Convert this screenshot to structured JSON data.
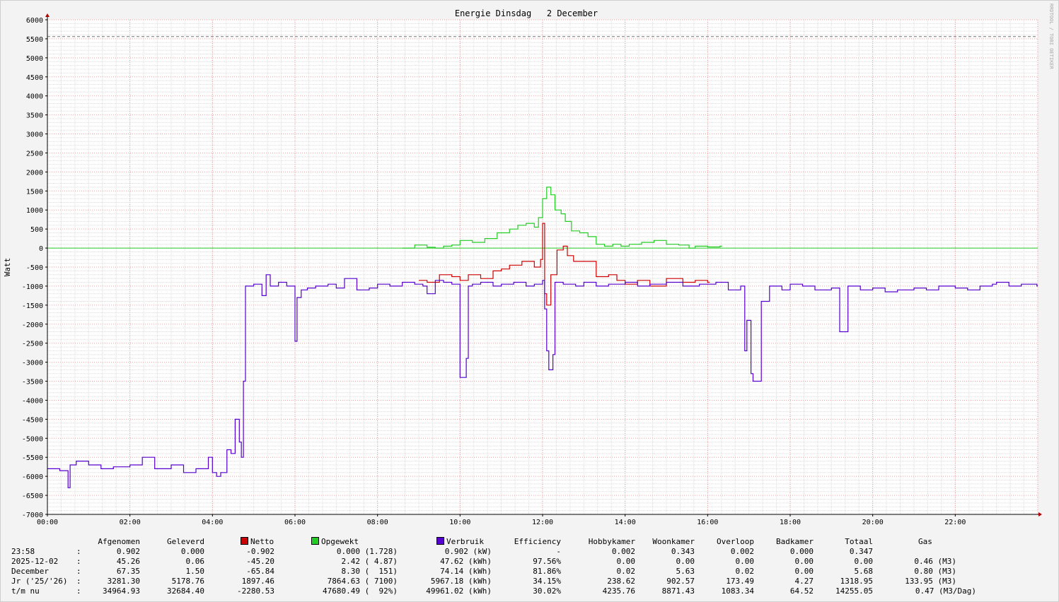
{
  "chart_data": {
    "type": "line",
    "title": "Energie Dinsdag   2 December",
    "ylabel": "Watt",
    "watermark": "RRDTOOL / TOBI OETIKER",
    "ylim": [
      -7000,
      6000
    ],
    "y_ticks": [
      "6000",
      "5500",
      "5000",
      "4500",
      "4000",
      "3500",
      "3000",
      "2500",
      "2000",
      "1500",
      "1000",
      "500",
      "0",
      "-500",
      "-1000",
      "-1500",
      "-2000",
      "-2500",
      "-3000",
      "-3500",
      "-4000",
      "-4500",
      "-5000",
      "-5500",
      "-6000",
      "-6500",
      "-7000"
    ],
    "xlim": [
      0,
      24
    ],
    "x_ticks": [
      "00:00",
      "02:00",
      "04:00",
      "06:00",
      "08:00",
      "10:00",
      "12:00",
      "14:00",
      "16:00",
      "18:00",
      "20:00",
      "22:00"
    ],
    "hline_dashed": 5560,
    "colors": {
      "netto": "#cc0000",
      "opgewekt": "#22cc22",
      "verbruik": "#5500cc",
      "grid_minor": "#d8d8d8",
      "grid_major": "#f0a0a0"
    },
    "series": [
      {
        "name": "Netto",
        "color": "#cc0000",
        "x": [
          9.0,
          9.2,
          9.5,
          9.8,
          10.0,
          10.2,
          10.5,
          10.8,
          11.0,
          11.2,
          11.5,
          11.8,
          11.95,
          12.0,
          12.05,
          12.1,
          12.2,
          12.35,
          12.5,
          12.6,
          12.75,
          13.0,
          13.3,
          13.6,
          13.8,
          14.0,
          14.3,
          14.6,
          15.0,
          15.4,
          15.7,
          16.0
        ],
        "values": [
          -850,
          -900,
          -700,
          -750,
          -850,
          -700,
          -800,
          -600,
          -550,
          -450,
          -350,
          -500,
          -300,
          650,
          -1200,
          -1500,
          -700,
          -50,
          50,
          -200,
          -350,
          -350,
          -750,
          -700,
          -850,
          -950,
          -850,
          -1000,
          -800,
          -900,
          -850,
          -900
        ]
      },
      {
        "name": "Opgewekt",
        "color": "#22cc22",
        "x": [
          8.6,
          8.9,
          9.2,
          9.4,
          9.6,
          9.8,
          10.0,
          10.3,
          10.6,
          10.9,
          11.2,
          11.4,
          11.6,
          11.8,
          11.9,
          12.0,
          12.1,
          12.2,
          12.3,
          12.45,
          12.55,
          12.7,
          12.9,
          13.1,
          13.3,
          13.5,
          13.7,
          13.9,
          14.1,
          14.4,
          14.7,
          15.0,
          15.3,
          15.55,
          15.7,
          16.0,
          16.3
        ],
        "values": [
          0,
          80,
          20,
          0,
          50,
          80,
          200,
          150,
          250,
          400,
          500,
          600,
          650,
          550,
          800,
          1300,
          1600,
          1400,
          1000,
          900,
          700,
          450,
          400,
          300,
          100,
          50,
          100,
          50,
          100,
          150,
          200,
          100,
          80,
          0,
          50,
          30,
          50
        ]
      },
      {
        "name": "Verbruik",
        "color": "#5500cc",
        "x": [
          0.0,
          0.3,
          0.5,
          0.55,
          0.7,
          1.0,
          1.3,
          1.6,
          2.0,
          2.3,
          2.6,
          3.0,
          3.3,
          3.6,
          3.9,
          4.0,
          4.1,
          4.2,
          4.35,
          4.45,
          4.55,
          4.65,
          4.7,
          4.75,
          4.8,
          5.0,
          5.2,
          5.3,
          5.4,
          5.6,
          5.8,
          6.0,
          6.05,
          6.15,
          6.3,
          6.5,
          6.8,
          7.0,
          7.2,
          7.5,
          7.8,
          8.0,
          8.3,
          8.6,
          8.9,
          9.1,
          9.2,
          9.4,
          9.6,
          9.8,
          10.0,
          10.15,
          10.2,
          10.3,
          10.5,
          10.8,
          11.0,
          11.3,
          11.6,
          11.8,
          12.0,
          12.05,
          12.1,
          12.15,
          12.25,
          12.3,
          12.5,
          12.8,
          13.0,
          13.3,
          13.6,
          14.0,
          14.3,
          14.6,
          15.0,
          15.4,
          15.8,
          16.2,
          16.5,
          16.8,
          16.9,
          16.95,
          17.05,
          17.1,
          17.3,
          17.5,
          17.8,
          18.0,
          18.3,
          18.6,
          19.0,
          19.2,
          19.4,
          19.7,
          20.0,
          20.3,
          20.6,
          21.0,
          21.3,
          21.6,
          22.0,
          22.3,
          22.6,
          22.9,
          23.0,
          23.3,
          23.6,
          23.98
        ],
        "values": [
          -5800,
          -5850,
          -6300,
          -5700,
          -5600,
          -5700,
          -5800,
          -5750,
          -5700,
          -5500,
          -5800,
          -5700,
          -5900,
          -5800,
          -5500,
          -5900,
          -6000,
          -5900,
          -5300,
          -5400,
          -4500,
          -5100,
          -5500,
          -3500,
          -1000,
          -950,
          -1250,
          -700,
          -1000,
          -900,
          -1000,
          -2450,
          -1300,
          -1100,
          -1050,
          -1000,
          -950,
          -1050,
          -800,
          -1100,
          -1050,
          -950,
          -1000,
          -900,
          -950,
          -1000,
          -1200,
          -850,
          -900,
          -950,
          -3400,
          -2900,
          -1000,
          -950,
          -900,
          -1000,
          -950,
          -900,
          -1000,
          -950,
          -850,
          -1600,
          -2700,
          -3200,
          -2800,
          -900,
          -950,
          -1000,
          -900,
          -1000,
          -950,
          -900,
          -1000,
          -950,
          -900,
          -1000,
          -950,
          -900,
          -1100,
          -1000,
          -2700,
          -1900,
          -3300,
          -3500,
          -1400,
          -1000,
          -1100,
          -950,
          -1000,
          -1100,
          -1050,
          -2200,
          -1000,
          -1100,
          -1050,
          -1150,
          -1100,
          -1050,
          -1100,
          -1000,
          -1050,
          -1100,
          -1000,
          -950,
          -900,
          -1000,
          -950,
          -1000
        ]
      }
    ]
  },
  "stats": {
    "headers": {
      "afgenomen": "Afgenomen",
      "geleverd": "Geleverd",
      "netto": "Netto",
      "opgewekt": "Opgewekt",
      "verbruik": "Verbruik",
      "efficiency": "Efficiency",
      "hobbykamer": "Hobbykamer",
      "woonkamer": "Woonkamer",
      "overloop": "Overloop",
      "badkamer": "Badkamer",
      "totaal": "Totaal",
      "gas": "Gas"
    },
    "rows": [
      {
        "label": "23:58",
        "sep": ":",
        "afgenomen": "0.902",
        "geleverd": "0.000",
        "netto": "-0.902",
        "opgewekt": "0.000 (1.728)",
        "verbruik": "0.902 (kW)",
        "efficiency": "-",
        "hobbykamer": "0.002",
        "woonkamer": "0.343",
        "overloop": "0.002",
        "badkamer": "0.000",
        "totaal": "0.347",
        "gas": ""
      },
      {
        "label": "2025-12-02",
        "sep": ":",
        "afgenomen": "45.26",
        "geleverd": "0.06",
        "netto": "-45.20",
        "opgewekt": "2.42 ( 4.87)",
        "verbruik": "47.62 (kWh)",
        "efficiency": "97.56%",
        "hobbykamer": "0.00",
        "woonkamer": "0.00",
        "overloop": "0.00",
        "badkamer": "0.00",
        "totaal": "0.00",
        "gas": "0.46 (M3)"
      },
      {
        "label": "December",
        "sep": ":",
        "afgenomen": "67.35",
        "geleverd": "1.50",
        "netto": "-65.84",
        "opgewekt": "8.30 (  151)",
        "verbruik": "74.14 (kWh)",
        "efficiency": "81.86%",
        "hobbykamer": "0.02",
        "woonkamer": "5.63",
        "overloop": "0.02",
        "badkamer": "0.00",
        "totaal": "5.68",
        "gas": "0.80 (M3)"
      },
      {
        "label": "Jr ('25/'26)",
        "sep": ":",
        "afgenomen": "3281.30",
        "geleverd": "5178.76",
        "netto": "1897.46",
        "opgewekt": "7864.63 ( 7100)",
        "verbruik": "5967.18 (kWh)",
        "efficiency": "34.15%",
        "hobbykamer": "238.62",
        "woonkamer": "902.57",
        "overloop": "173.49",
        "badkamer": "4.27",
        "totaal": "1318.95",
        "gas": "133.95 (M3)"
      },
      {
        "label": "t/m nu",
        "sep": ":",
        "afgenomen": "34964.93",
        "geleverd": "32684.40",
        "netto": "-2280.53",
        "opgewekt": "47680.49 (  92%)",
        "verbruik": "49961.02 (kWh)",
        "efficiency": "30.02%",
        "hobbykamer": "4235.76",
        "woonkamer": "8871.43",
        "overloop": "1083.34",
        "badkamer": "64.52",
        "totaal": "14255.05",
        "gas": "0.47 (M3/Dag)"
      }
    ]
  }
}
